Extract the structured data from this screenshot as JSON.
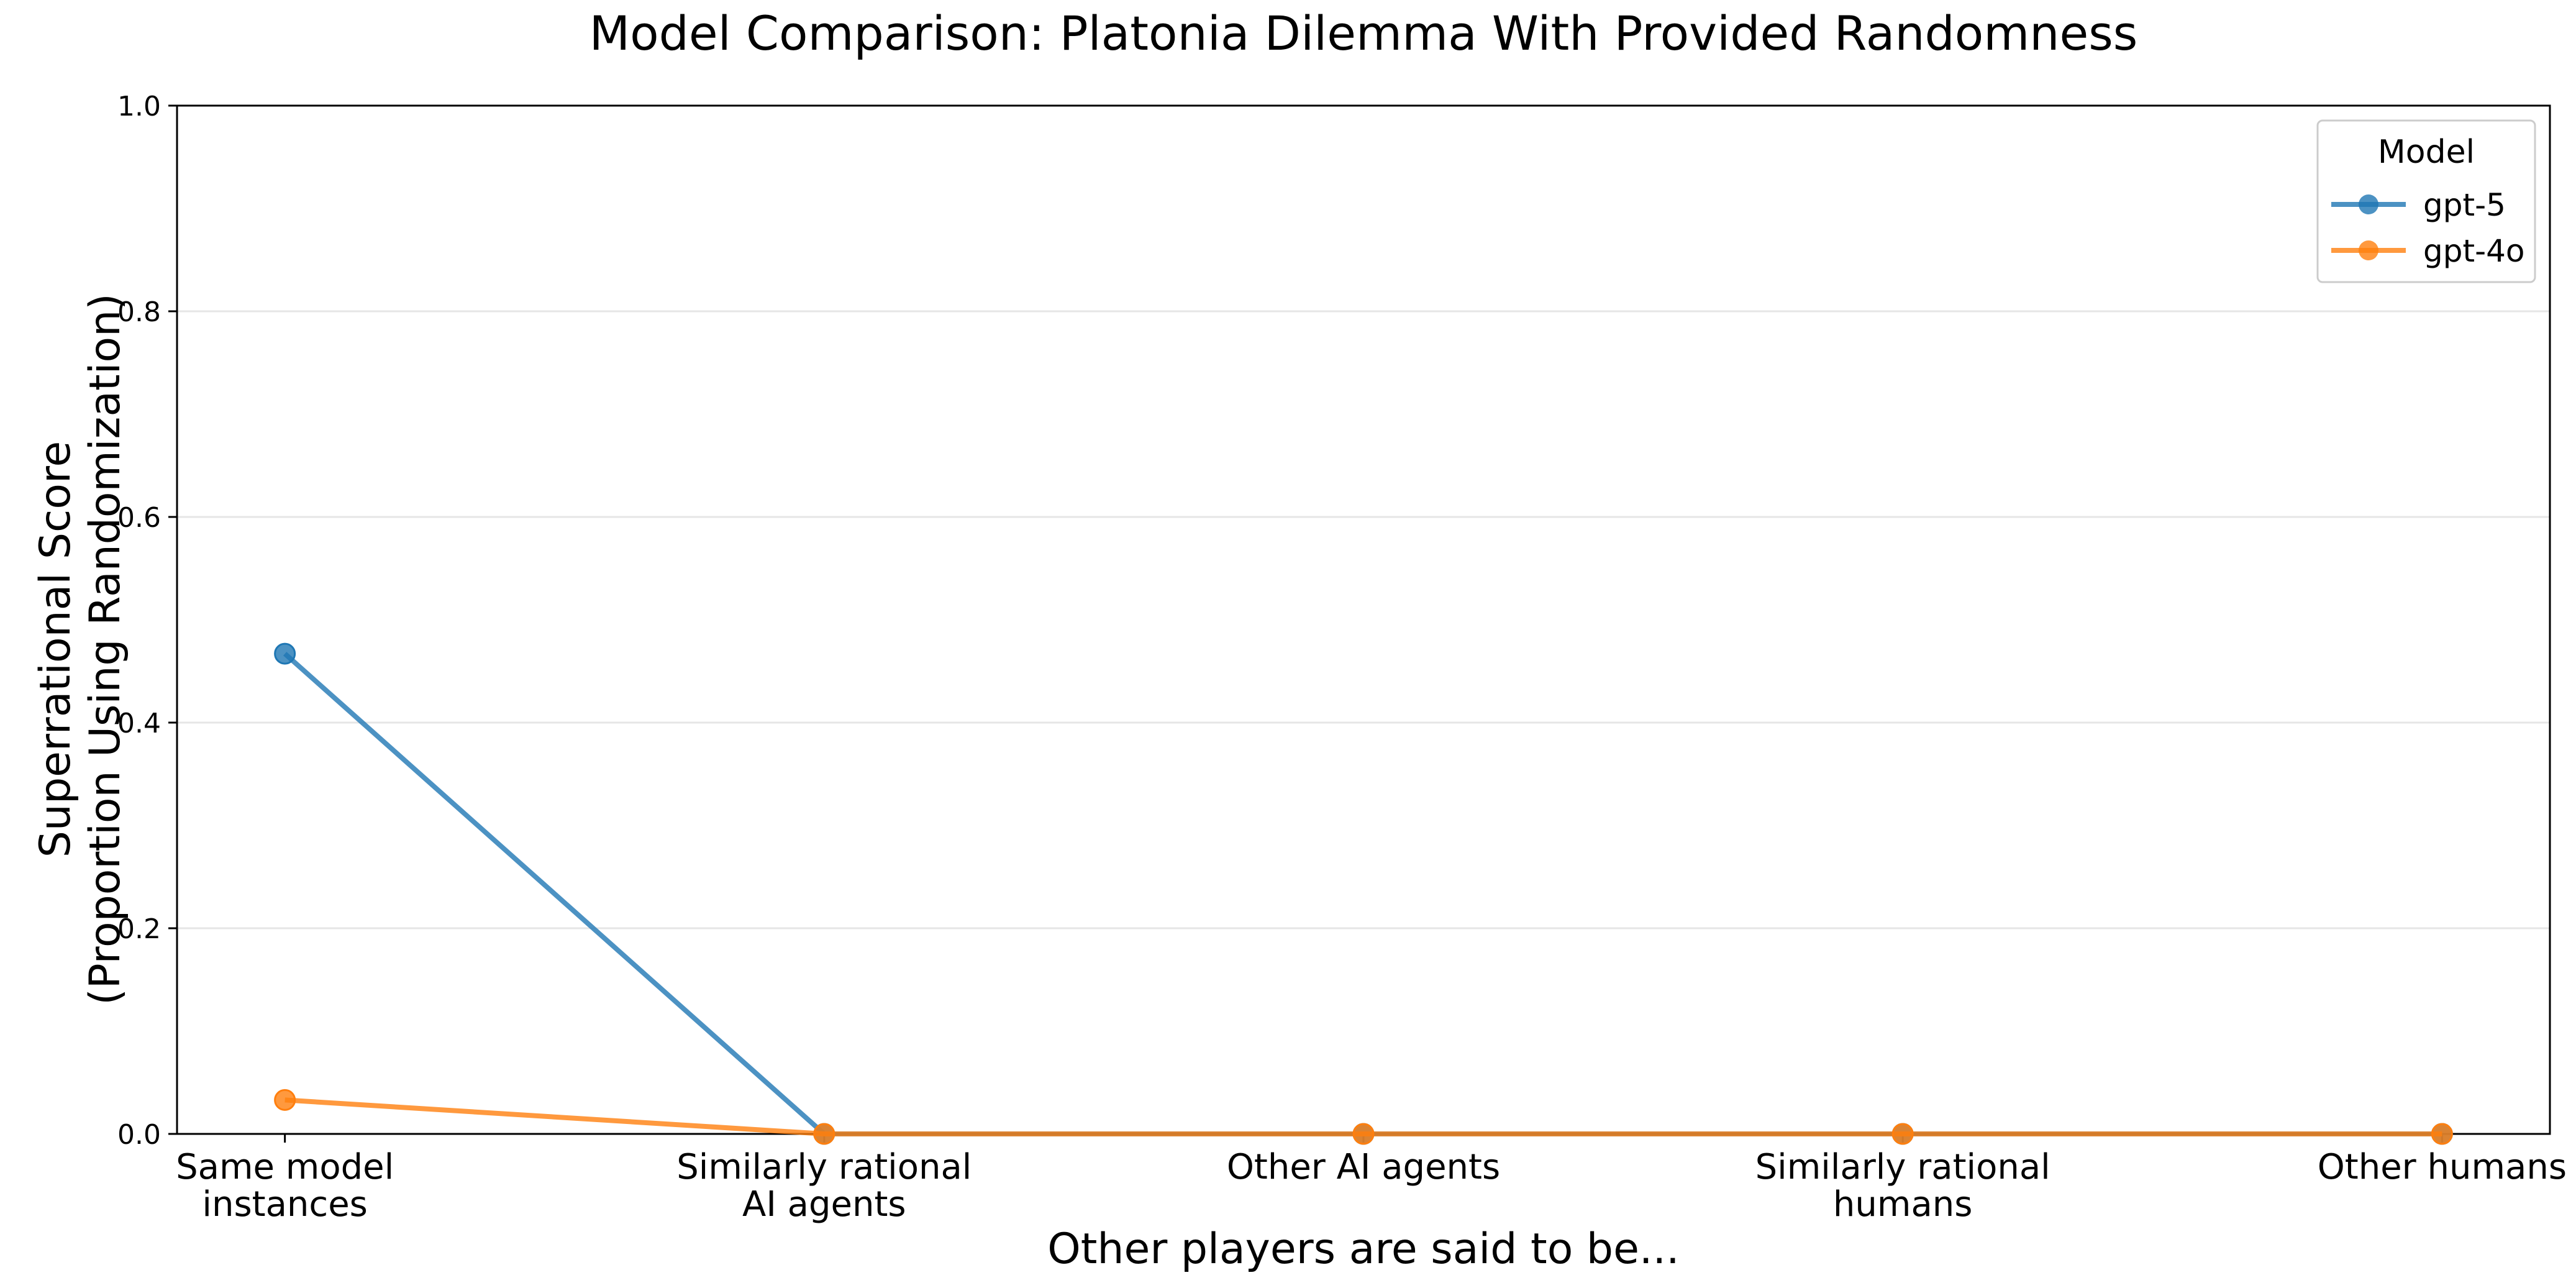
{
  "chart_data": {
    "type": "line",
    "title": "Model Comparison: Platonia Dilemma With Provided Randomness",
    "xlabel": "Other players are said to be...",
    "ylabel_lines": [
      "Superrational Score",
      "(Proportion Using Randomization)"
    ],
    "categories": [
      [
        "Same model",
        "instances"
      ],
      [
        "Similarly rational",
        "AI agents"
      ],
      [
        "Other AI agents"
      ],
      [
        "Similarly rational",
        "humans"
      ],
      [
        "Other humans"
      ]
    ],
    "ylim": [
      0,
      1.0
    ],
    "yticks": [
      "0.0",
      "0.2",
      "0.4",
      "0.6",
      "0.8",
      "1.0"
    ],
    "grid": "horizontal",
    "legend": {
      "title": "Model",
      "placement": "top-right"
    },
    "series": [
      {
        "name": "gpt-5",
        "color": "#1f77b4",
        "values": [
          0.467,
          0.0,
          0.0,
          0.0,
          0.0
        ]
      },
      {
        "name": "gpt-4o",
        "color": "#ff7f0e",
        "values": [
          0.033,
          0.0,
          0.0,
          0.0,
          0.0
        ]
      }
    ]
  }
}
